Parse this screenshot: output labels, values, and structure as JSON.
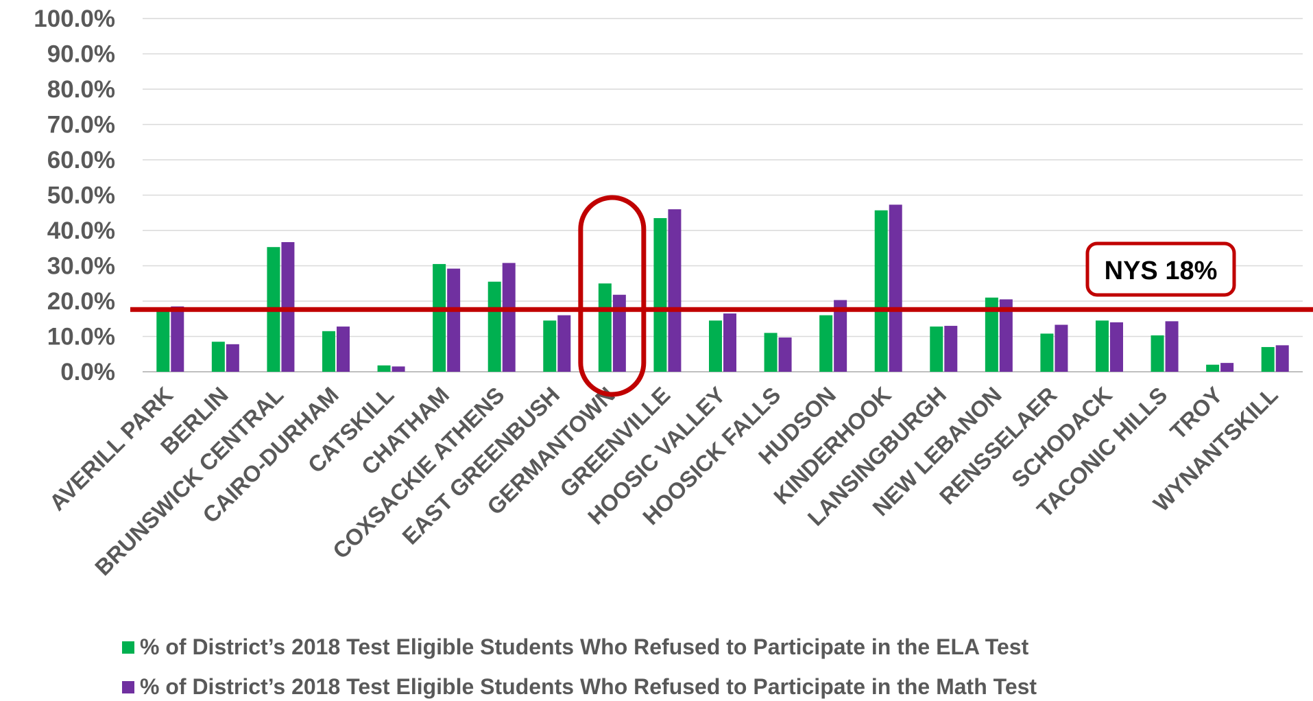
{
  "chart_data": {
    "type": "bar",
    "categories": [
      "AVERILL PARK",
      "BERLIN",
      "BRUNSWICK CENTRAL",
      "CAIRO-DURHAM",
      "CATSKILL",
      "CHATHAM",
      "COXSACKIE ATHENS",
      "EAST GREENBUSH",
      "GERMANTOWN",
      "GREENVILLE",
      "HOOSIC VALLEY",
      "HOOSICK FALLS",
      "HUDSON",
      "KINDERHOOK",
      "LANSINGBURGH",
      "NEW LEBANON",
      "RENSSELAER",
      "SCHODACK",
      "TACONIC HILLS",
      "TROY",
      "WYNANTSKILL"
    ],
    "series": [
      {
        "name": "% of District’s 2018 Test Eligible Students Who Refused to Participate in the ELA Test",
        "color": "#00b050",
        "values": [
          17.0,
          8.5,
          35.3,
          11.5,
          1.8,
          30.5,
          25.5,
          14.5,
          25.0,
          43.5,
          14.5,
          11.0,
          16.0,
          45.7,
          12.8,
          21.0,
          10.8,
          14.5,
          10.3,
          2.0,
          7.0
        ]
      },
      {
        "name": "% of District’s 2018 Test Eligible Students Who Refused to Participate in the Math Test",
        "color": "#7030a0",
        "values": [
          18.5,
          7.8,
          36.7,
          12.8,
          1.5,
          29.2,
          30.8,
          16.0,
          21.8,
          46.0,
          16.5,
          9.7,
          20.3,
          47.3,
          13.0,
          20.5,
          13.3,
          14.0,
          14.3,
          2.5,
          7.5
        ]
      }
    ],
    "y_ticks": [
      "0.0%",
      "10.0%",
      "20.0%",
      "30.0%",
      "40.0%",
      "50.0%",
      "60.0%",
      "70.0%",
      "80.0%",
      "90.0%",
      "100.0%"
    ],
    "ylim": [
      0,
      100
    ],
    "grid": true,
    "legend_position": "bottom",
    "reference_line": {
      "value": 18,
      "label": "NYS 18%",
      "color": "#c00000"
    },
    "highlight_category": "GERMANTOWN",
    "highlight_color": "#c00000"
  }
}
